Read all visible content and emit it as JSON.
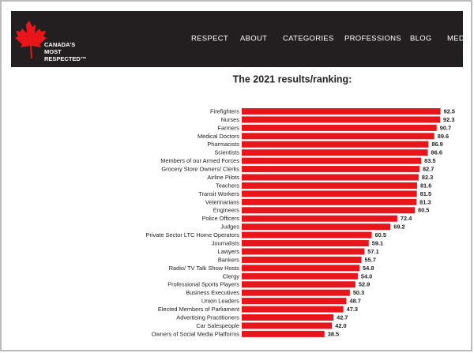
{
  "header": {
    "logo": [
      "CANADA'S",
      "MOST",
      "RESPECTED™"
    ],
    "nav": [
      "RESPECT",
      "ABOUT",
      "CATEGORIES",
      "PROFESSIONS",
      "BLOG",
      "MED"
    ],
    "active": 3
  },
  "chart_data": {
    "type": "hbar",
    "title": "The 2021 results/ranking:",
    "color": "#e8151b",
    "categories": [
      "Firefighters",
      "Nurses",
      "Farmers",
      "Medical Doctors",
      "Pharmacists",
      "Scientists",
      "Members of our Armed Forces",
      "Grocery Store Owners/ Clerks",
      "Airline Pilots",
      "Teachers",
      "Transit Workers",
      "Veterinarians",
      "Engineers",
      "Police Officers",
      "Judges",
      "Private Sector LTC Home Operators",
      "Journalists",
      "Lawyers",
      "Bankers",
      "Radio/ TV Talk Show Hosts",
      "Clergy",
      "Professional Sports Players",
      "Business Executives",
      "Union Leaders",
      "Elected Members of Parliament",
      "Advertising Practitioners",
      "Car Salespeople",
      "Owners of Social Media Platforms"
    ],
    "values": [
      92.5,
      92.3,
      90.7,
      89.6,
      86.9,
      86.6,
      83.5,
      82.7,
      82.3,
      81.6,
      81.5,
      81.3,
      80.5,
      72.4,
      69.2,
      60.5,
      59.1,
      57.1,
      55.7,
      54.8,
      54.0,
      52.9,
      50.3,
      48.7,
      47.3,
      42.7,
      42.0,
      38.5
    ],
    "value_labels": [
      "92.5",
      "92.3",
      "90.7",
      "89.6",
      "86.9",
      "86.6",
      "83.5",
      "82.7",
      "82.3",
      "81.6",
      "81.5",
      "81.3",
      "80.5",
      "72.4",
      "69.2",
      "60.5",
      "59.1",
      "57.1",
      "55.7",
      "54.8",
      "54.0",
      "52.9",
      "50.3",
      "48.7",
      "47.3",
      "42.7",
      "42.0",
      "38.5"
    ]
  }
}
